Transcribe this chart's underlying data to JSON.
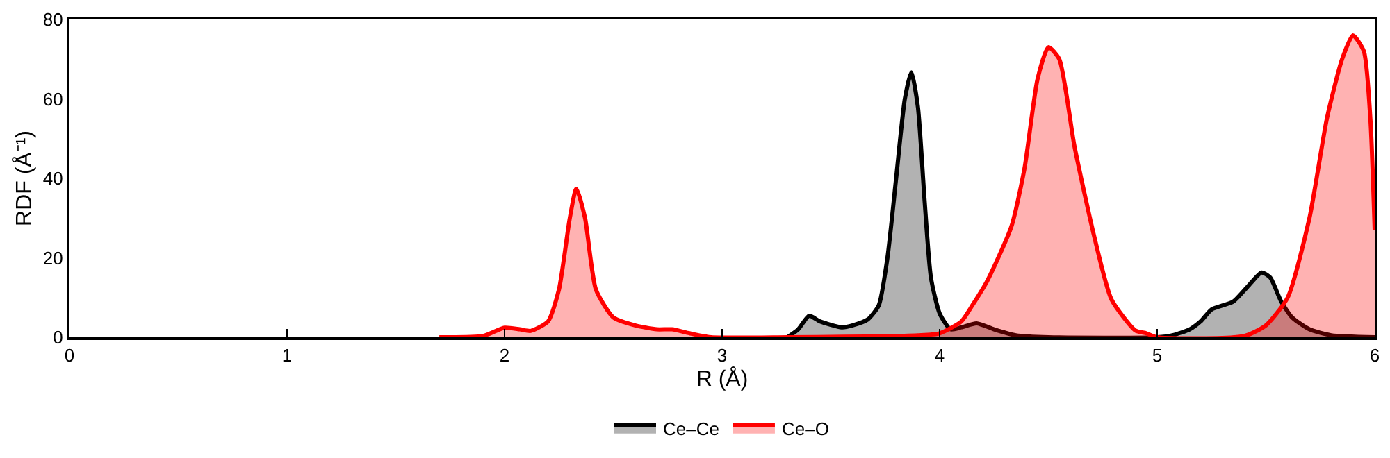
{
  "chart_data": {
    "type": "area",
    "xlabel": "R (Å)",
    "ylabel": "RDF (Å⁻¹)",
    "xlim": [
      0,
      6
    ],
    "ylim": [
      0,
      80
    ],
    "xticks": [
      0,
      1,
      2,
      3,
      4,
      5,
      6
    ],
    "yticks": [
      0,
      20,
      40,
      60,
      80
    ],
    "legend": "bottom",
    "marker": "none",
    "line_style": "solid",
    "series": [
      {
        "name": "Ce–Ce",
        "color": "#000000",
        "x": [
          3.3,
          3.35,
          3.4,
          3.45,
          3.55,
          3.6,
          3.67,
          3.72,
          3.76,
          3.8,
          3.84,
          3.87,
          3.9,
          3.93,
          3.96,
          4.0,
          4.05,
          4.1,
          4.17,
          4.25,
          4.35,
          4.5,
          5.0,
          5.07,
          5.15,
          5.2,
          5.25,
          5.35,
          5.42,
          5.48,
          5.52,
          5.57,
          5.62,
          5.7,
          5.8,
          6.0
        ],
        "values": [
          0,
          2,
          5.4,
          4,
          2.5,
          3,
          4.5,
          8,
          20,
          40,
          60,
          66.7,
          58,
          35,
          15,
          6,
          2,
          2.5,
          3.5,
          2,
          0.5,
          0,
          0,
          0.5,
          2,
          4,
          7,
          9,
          13,
          16.3,
          15,
          9,
          5,
          2,
          0.5,
          0
        ]
      },
      {
        "name": "Ce–O",
        "color": "#ff0000",
        "x": [
          1.7,
          1.9,
          2.0,
          2.07,
          2.12,
          2.2,
          2.25,
          2.3,
          2.33,
          2.37,
          2.42,
          2.5,
          2.6,
          2.7,
          2.77,
          2.85,
          2.95,
          3.3,
          3.9,
          4.0,
          4.1,
          4.15,
          4.22,
          4.33,
          4.39,
          4.45,
          4.5,
          4.55,
          4.62,
          4.71,
          4.79,
          4.9,
          4.95,
          5.0,
          5.4,
          5.5,
          5.6,
          5.7,
          5.78,
          5.85,
          5.9,
          5.95,
          5.98,
          6.0
        ],
        "values": [
          0,
          0.3,
          2.4,
          2,
          1.6,
          4,
          12,
          30,
          37.4,
          30,
          12,
          5,
          3,
          2,
          2,
          1,
          0,
          0,
          0.5,
          1,
          4,
          8,
          14.3,
          27.9,
          42.5,
          65,
          73,
          70,
          48,
          25.5,
          9.5,
          1.7,
          1,
          0,
          0.3,
          3,
          10,
          30,
          55,
          70,
          76,
          72,
          55,
          27
        ]
      }
    ]
  }
}
